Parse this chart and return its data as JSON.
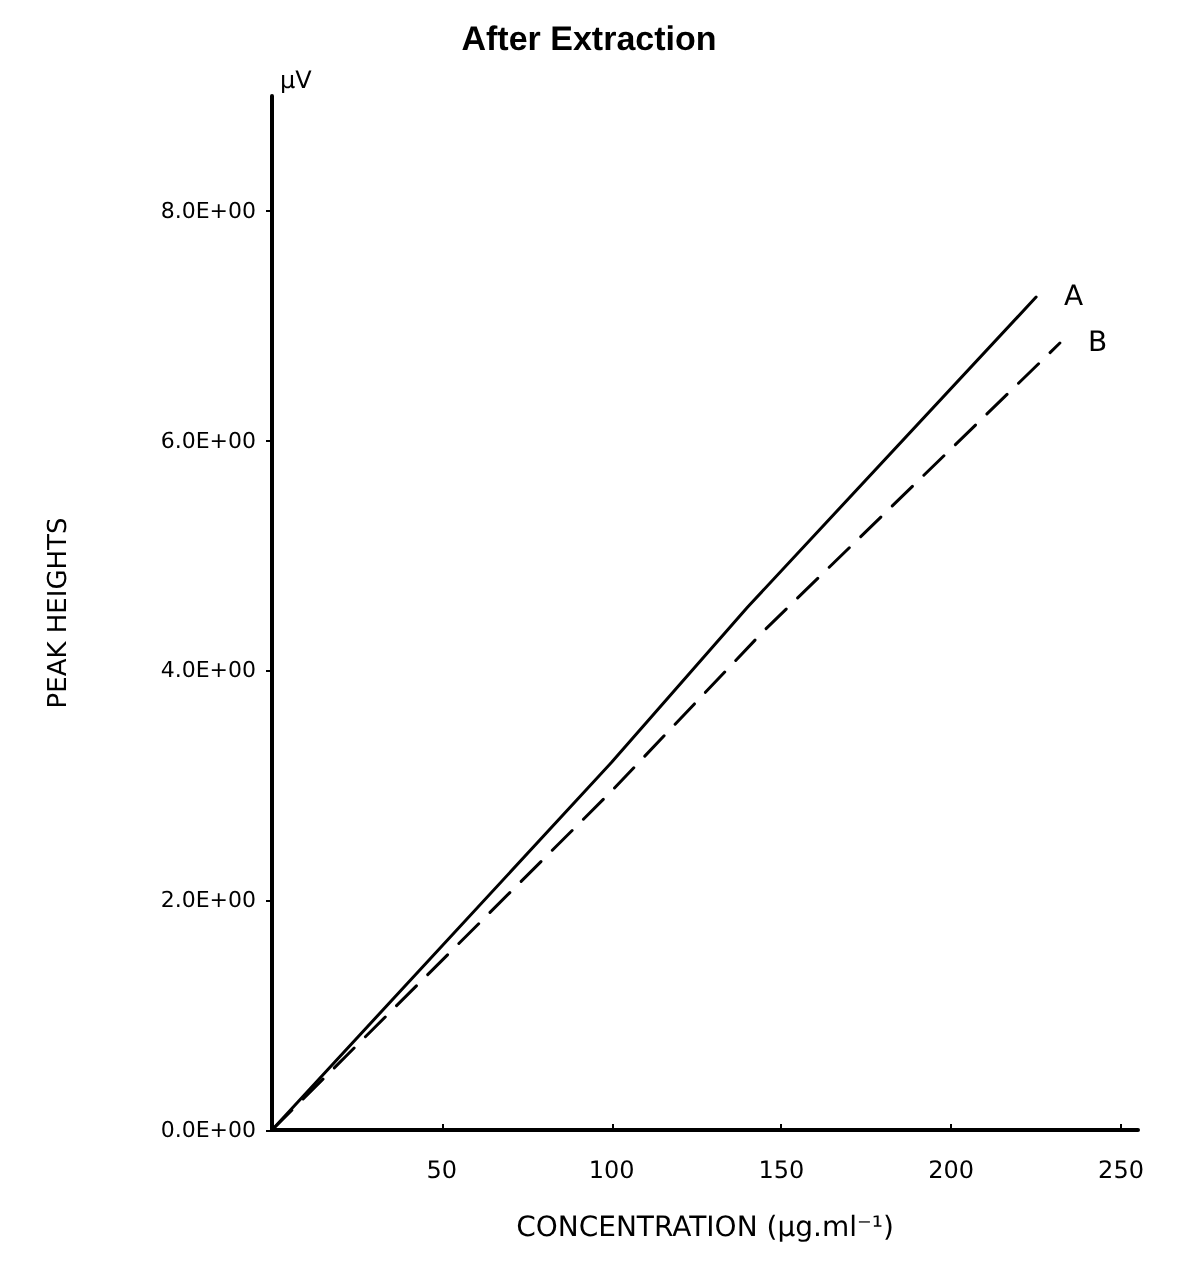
{
  "chart_data": {
    "type": "line",
    "title": "After Extraction",
    "xlabel": "CONCENTRATION (μg.ml⁻¹)",
    "ylabel": "PEAK HEIGHTS",
    "annotations": [
      "μV"
    ],
    "xlim": [
      0,
      255
    ],
    "xticks": [
      50,
      100,
      150,
      200,
      250
    ],
    "ylim": [
      0,
      9
    ],
    "yticks": [
      {
        "value": 0,
        "label": "0.0E+00"
      },
      {
        "value": 2,
        "label": "2.0E+00"
      },
      {
        "value": 4,
        "label": "4.0E+00"
      },
      {
        "value": 6,
        "label": "6.0E+00"
      },
      {
        "value": 8,
        "label": "8.0E+00"
      }
    ],
    "grid": false,
    "legend": false,
    "marker": "none",
    "series": [
      {
        "name": "A",
        "color": "#000000",
        "line_style": "solid",
        "x": [
          0,
          100,
          140,
          225
        ],
        "values": [
          0,
          3.2,
          4.55,
          7.25
        ]
      },
      {
        "name": "B",
        "color": "#000000",
        "line_style": "dashed",
        "x": [
          0,
          100,
          145,
          232
        ],
        "values": [
          0,
          2.95,
          4.35,
          6.85
        ]
      }
    ]
  }
}
